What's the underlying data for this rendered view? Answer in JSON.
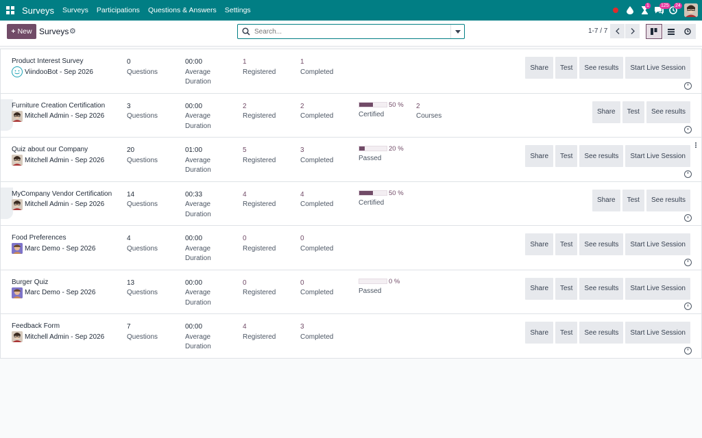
{
  "navbar": {
    "brand": "Surveys",
    "menu": [
      "Surveys",
      "Participations",
      "Questions & Answers",
      "Settings"
    ],
    "badges": {
      "activity": "1",
      "messages": "125",
      "updates": "24"
    }
  },
  "control_panel": {
    "new_label": "New",
    "title": "Surveys",
    "search_placeholder": "Search...",
    "pager": "1-7 / 7"
  },
  "rows": [
    {
      "title": "Product Interest Survey",
      "author": "ViindooBot - Sep 2026",
      "avatar": "bot-avatar",
      "questions": "0",
      "questions_label": "Questions",
      "duration": "00:00",
      "duration_label1": "Average",
      "duration_label2": "Duration",
      "registered": "1",
      "registered_label": "Registered",
      "completed": "1",
      "completed_label": "Completed",
      "buttons": [
        "Share",
        "Test",
        "See results",
        "Start Live Session"
      ]
    },
    {
      "title": "Furniture Creation Certification",
      "author": "Mitchell Admin - Sep 2026",
      "avatar": "user-avatar",
      "questions": "3",
      "questions_label": "Questions",
      "duration": "00:00",
      "duration_label1": "Average",
      "duration_label2": "Duration",
      "registered": "2",
      "registered_label": "Registered",
      "completed": "2",
      "completed_label": "Completed",
      "progress": {
        "value": 50,
        "text": "50 %",
        "label": "Certified"
      },
      "courses": {
        "count": "2",
        "label": "Courses"
      },
      "buttons": [
        "Share",
        "Test",
        "See results"
      ]
    },
    {
      "title": "Quiz about our Company",
      "author": "Mitchell Admin - Sep 2026",
      "avatar": "user-avatar",
      "questions": "20",
      "questions_label": "Questions",
      "duration": "01:00",
      "duration_label1": "Average",
      "duration_label2": "Duration",
      "registered": "5",
      "registered_label": "Registered",
      "completed": "3",
      "completed_label": "Completed",
      "progress": {
        "value": 20,
        "text": "20 %",
        "label": "Passed"
      },
      "buttons": [
        "Share",
        "Test",
        "See results",
        "Start Live Session"
      ]
    },
    {
      "title": "MyCompany Vendor Certification",
      "author": "Mitchell Admin - Sep 2026",
      "avatar": "user-avatar",
      "questions": "14",
      "questions_label": "Questions",
      "duration": "00:33",
      "duration_label1": "Average",
      "duration_label2": "Duration",
      "registered": "4",
      "registered_label": "Registered",
      "completed": "4",
      "completed_label": "Completed",
      "progress": {
        "value": 50,
        "text": "50 %",
        "label": "Certified"
      },
      "buttons": [
        "Share",
        "Test",
        "See results"
      ]
    },
    {
      "title": "Food Preferences",
      "author": "Marc Demo - Sep 2026",
      "avatar": "user-avatar",
      "questions": "4",
      "questions_label": "Questions",
      "duration": "00:00",
      "duration_label1": "Average",
      "duration_label2": "Duration",
      "registered": "0",
      "registered_label": "Registered",
      "completed": "0",
      "completed_label": "Completed",
      "buttons": [
        "Share",
        "Test",
        "See results",
        "Start Live Session"
      ]
    },
    {
      "title": "Burger Quiz",
      "author": "Marc Demo - Sep 2026",
      "avatar": "user-avatar",
      "questions": "13",
      "questions_label": "Questions",
      "duration": "00:00",
      "duration_label1": "Average",
      "duration_label2": "Duration",
      "registered": "0",
      "registered_label": "Registered",
      "completed": "0",
      "completed_label": "Completed",
      "progress": {
        "value": 0,
        "text": "0 %",
        "label": "Passed"
      },
      "buttons": [
        "Share",
        "Test",
        "See results",
        "Start Live Session"
      ]
    },
    {
      "title": "Feedback Form",
      "author": "Mitchell Admin - Sep 2026",
      "avatar": "user-avatar",
      "questions": "7",
      "questions_label": "Questions",
      "duration": "00:00",
      "duration_label1": "Average",
      "duration_label2": "Duration",
      "registered": "4",
      "registered_label": "Registered",
      "completed": "3",
      "completed_label": "Completed",
      "buttons": [
        "Share",
        "Test",
        "See results",
        "Start Live Session"
      ]
    }
  ]
}
